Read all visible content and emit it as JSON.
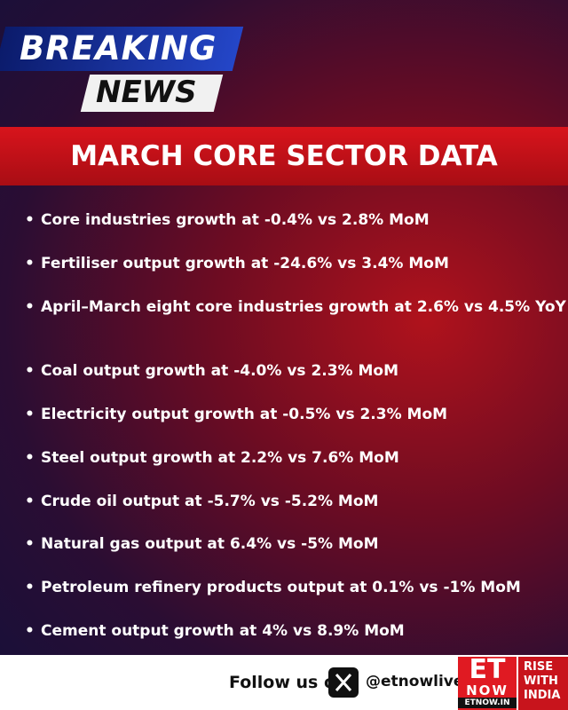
{
  "badge": {
    "line1": "BREAKING",
    "line2": "NEWS"
  },
  "title": "MARCH CORE SECTOR DATA",
  "items": [
    "Core industries growth at -0.4% vs 2.8% MoM",
    "Fertiliser output growth at -24.6% vs 3.4% MoM",
    "April–March eight core industries growth at 2.6% vs 4.5% YoY",
    "Coal output growth at -4.0% vs 2.3% MoM",
    "Electricity output growth at -0.5% vs 2.3% MoM",
    "Steel output growth at 2.2% vs 7.6% MoM",
    "Crude oil output at -5.7% vs -5.2% MoM",
    "Natural gas output at 6.4% vs -5% MoM",
    "Petroleum refinery products output at 0.1% vs -1% MoM",
    "Cement output growth at 4% vs 8.9% MoM"
  ],
  "footer": {
    "follow": "Follow us on",
    "handle": "@etnowlive",
    "logo": {
      "et": "ET",
      "now": "NOW",
      "site": "ETNOW.IN"
    },
    "tagline": [
      "RISE",
      "WITH",
      "INDIA"
    ]
  }
}
